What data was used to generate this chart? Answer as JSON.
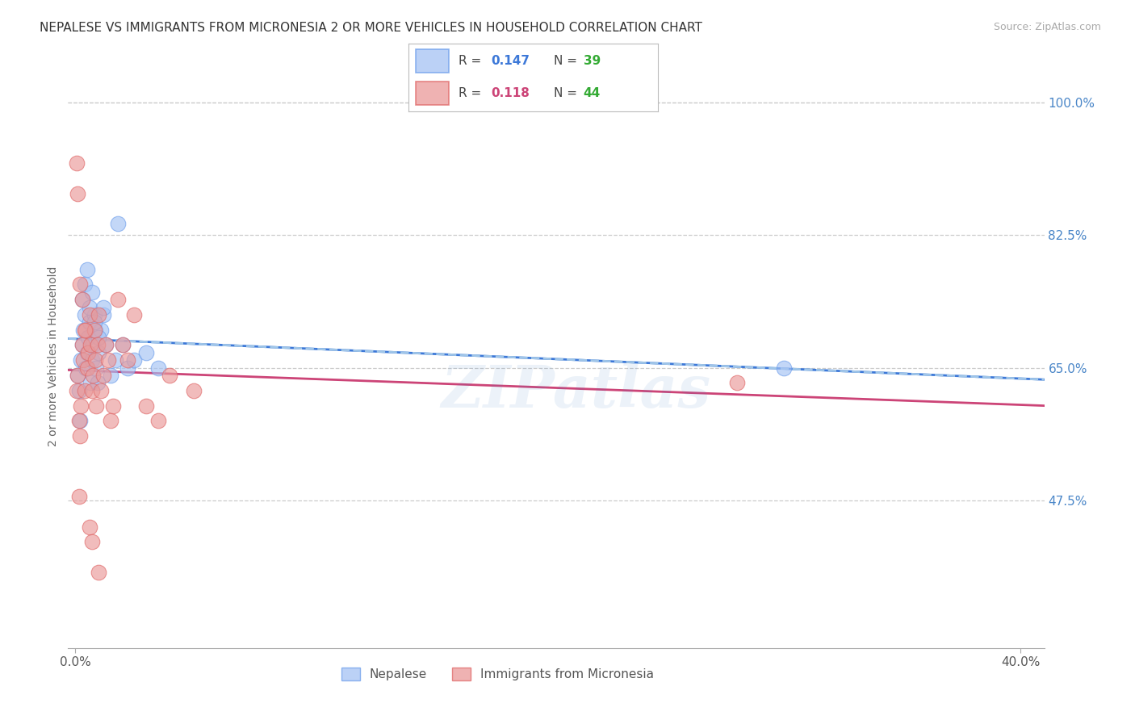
{
  "title": "NEPALESE VS IMMIGRANTS FROM MICRONESIA 2 OR MORE VEHICLES IN HOUSEHOLD CORRELATION CHART",
  "source": "Source: ZipAtlas.com",
  "ylabel": "2 or more Vehicles in Household",
  "xlim": [
    -0.3,
    41.0
  ],
  "ylim": [
    28.0,
    105.0
  ],
  "watermark": "ZIPatlas",
  "nepalese_color": "#a4c2f4",
  "micronesia_color": "#ea9999",
  "nepalese_edge_color": "#6d9eeb",
  "micronesia_edge_color": "#e06666",
  "nepalese_line_color": "#3c78d8",
  "micronesia_line_color": "#cc4477",
  "dashed_line_color": "#9fc5e8",
  "legend_R_nepalese": "0.147",
  "legend_N_nepalese": "39",
  "legend_R_micronesia": "0.118",
  "legend_N_micronesia": "44",
  "nepalese_x": [
    0.1,
    0.15,
    0.2,
    0.25,
    0.3,
    0.35,
    0.4,
    0.45,
    0.5,
    0.55,
    0.6,
    0.65,
    0.7,
    0.75,
    0.8,
    0.85,
    0.9,
    0.95,
    1.0,
    1.1,
    1.2,
    1.3,
    1.5,
    1.7,
    2.0,
    2.2,
    2.5,
    3.0,
    3.5,
    0.3,
    0.4,
    0.5,
    0.6,
    0.7,
    0.8,
    1.0,
    1.2,
    30.0,
    1.8
  ],
  "nepalese_y": [
    64.0,
    62.0,
    58.0,
    66.0,
    68.0,
    70.0,
    72.0,
    65.0,
    67.0,
    69.0,
    71.0,
    63.0,
    66.0,
    68.0,
    72.0,
    70.0,
    65.0,
    63.0,
    67.0,
    70.0,
    72.0,
    68.0,
    64.0,
    66.0,
    68.0,
    65.0,
    66.0,
    67.0,
    65.0,
    74.0,
    76.0,
    78.0,
    73.0,
    75.0,
    71.0,
    69.0,
    73.0,
    65.0,
    84.0
  ],
  "micronesia_x": [
    0.05,
    0.1,
    0.15,
    0.2,
    0.25,
    0.3,
    0.35,
    0.4,
    0.45,
    0.5,
    0.55,
    0.6,
    0.65,
    0.7,
    0.75,
    0.8,
    0.85,
    0.9,
    0.95,
    1.0,
    1.1,
    1.2,
    1.3,
    1.4,
    1.5,
    1.6,
    1.8,
    2.0,
    2.2,
    2.5,
    3.0,
    3.5,
    4.0,
    5.0,
    0.2,
    0.3,
    0.4,
    0.05,
    0.1,
    0.15,
    0.6,
    0.7,
    28.0,
    1.0
  ],
  "micronesia_y": [
    62.0,
    64.0,
    58.0,
    56.0,
    60.0,
    68.0,
    66.0,
    62.0,
    70.0,
    65.0,
    67.0,
    72.0,
    68.0,
    62.0,
    64.0,
    70.0,
    66.0,
    60.0,
    68.0,
    72.0,
    62.0,
    64.0,
    68.0,
    66.0,
    58.0,
    60.0,
    74.0,
    68.0,
    66.0,
    72.0,
    60.0,
    58.0,
    64.0,
    62.0,
    76.0,
    74.0,
    70.0,
    92.0,
    88.0,
    48.0,
    44.0,
    42.0,
    63.0,
    38.0
  ],
  "ylabel_ticks": [
    47.5,
    65.0,
    82.5,
    100.0
  ],
  "xtick_labels": [
    "0.0%",
    "40.0%"
  ],
  "xtick_positions": [
    0.0,
    40.0
  ],
  "background_color": "#ffffff",
  "grid_color": "#cccccc",
  "right_tick_color": "#4a86c8",
  "title_fontsize": 11,
  "axis_label_fontsize": 10
}
